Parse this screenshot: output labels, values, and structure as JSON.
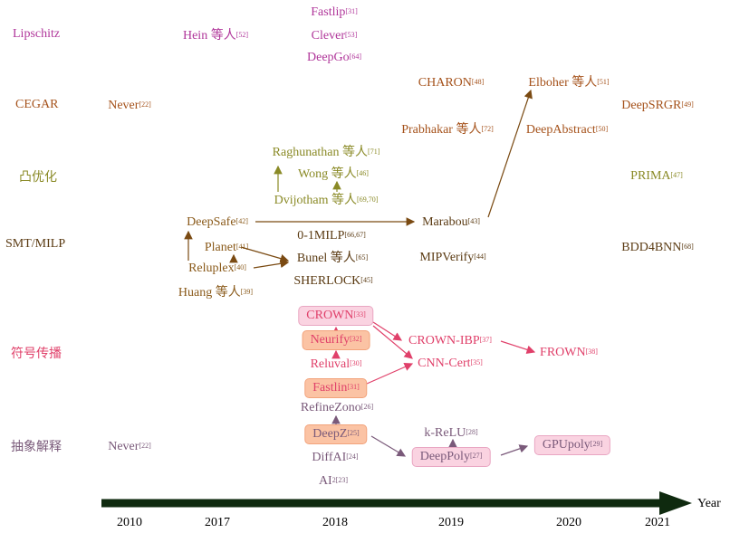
{
  "categories": [
    {
      "label": "Lipschitz",
      "color": "#b0369a"
    },
    {
      "label": "CEGAR",
      "color": "#a5521b"
    },
    {
      "label": "凸优化",
      "color": "#8a8a26"
    },
    {
      "label": "SMT/MILP",
      "color": "#5a3a12"
    },
    {
      "label": "符号传播",
      "color": "#e0406a"
    },
    {
      "label": "抽象解释",
      "color": "#7a5a7a"
    }
  ],
  "methods": [
    {
      "label": "Hein 等人",
      "ref": "[52]",
      "color": "#b0369a"
    },
    {
      "label": "Fastlip",
      "ref": "[31]",
      "color": "#b0369a"
    },
    {
      "label": "Clever",
      "ref": "[53]",
      "color": "#b0369a"
    },
    {
      "label": "DeepGo",
      "ref": "[64]",
      "color": "#b0369a"
    },
    {
      "label": "Never",
      "ref": "[22]",
      "color": "#a5521b"
    },
    {
      "label": "CHARON",
      "ref": "[48]",
      "color": "#a5521b"
    },
    {
      "label": "Prabhakar 等人",
      "ref": "[72]",
      "color": "#a5521b"
    },
    {
      "label": "Elboher 等人",
      "ref": "[51]",
      "color": "#a5521b"
    },
    {
      "label": "DeepAbstract",
      "ref": "[50]",
      "color": "#a5521b"
    },
    {
      "label": "DeepSRGR",
      "ref": "[49]",
      "color": "#a5521b"
    },
    {
      "label": "Raghunathan 等人",
      "ref": "[71]",
      "color": "#8a8a26"
    },
    {
      "label": "Wong 等人",
      "ref": "[46]",
      "color": "#8a8a26"
    },
    {
      "label": "Dvijotham 等人",
      "ref": "[69,70]",
      "color": "#8a8a26"
    },
    {
      "label": "PRIMA",
      "ref": "[47]",
      "color": "#8a8a26"
    },
    {
      "label": "DeepSafe",
      "ref": "[42]",
      "color": "#8a5a1a"
    },
    {
      "label": "Planet",
      "ref": "[41]",
      "color": "#8a5a1a"
    },
    {
      "label": "Reluplex",
      "ref": "[40]",
      "color": "#8a5a1a"
    },
    {
      "label": "Huang 等人",
      "ref": "[39]",
      "color": "#8a5a1a"
    },
    {
      "label": "0-1MILP",
      "ref": "[66,67]",
      "color": "#5a3a12"
    },
    {
      "label": "Bunel 等人",
      "ref": "[65]",
      "color": "#5a3a12"
    },
    {
      "label": "SHERLOCK",
      "ref": "[45]",
      "color": "#5a3a12"
    },
    {
      "label": "Marabou",
      "ref": "[43]",
      "color": "#5a3a12"
    },
    {
      "label": "MIPVerify",
      "ref": "[44]",
      "color": "#5a3a12"
    },
    {
      "label": "BDD4BNN",
      "ref": "[68]",
      "color": "#5a3a12"
    },
    {
      "label": "CROWN",
      "ref": "[33]",
      "color": "#e0406a"
    },
    {
      "label": "Neurify",
      "ref": "[32]",
      "color": "#e0406a"
    },
    {
      "label": "Reluval",
      "ref": "[30]",
      "color": "#e0406a"
    },
    {
      "label": "Fastlin",
      "ref": "[31]",
      "color": "#e0406a"
    },
    {
      "label": "CROWN-IBP",
      "ref": "[37]",
      "color": "#e0406a"
    },
    {
      "label": "CNN-Cert",
      "ref": "[35]",
      "color": "#e0406a"
    },
    {
      "label": "FROWN",
      "ref": "[38]",
      "color": "#e0406a"
    },
    {
      "label": "RefineZono",
      "ref": "[26]",
      "color": "#7a5a7a"
    },
    {
      "label": "DeepZ",
      "ref": "[25]",
      "color": "#7a5a7a"
    },
    {
      "label": "DiffAI",
      "ref": "[24]",
      "color": "#7a5a7a"
    },
    {
      "label": "AI",
      "ref": "2[23]",
      "color": "#7a5a7a"
    },
    {
      "label": "Never",
      "ref": "[22]",
      "color": "#7a5a7a"
    },
    {
      "label": "k-ReLU",
      "ref": "[28]",
      "color": "#7a5a7a"
    },
    {
      "label": "DeepPoly",
      "ref": "[27]",
      "color": "#7a5a7a"
    },
    {
      "label": "GPUpoly",
      "ref": "[29]",
      "color": "#7a5a7a"
    }
  ],
  "years": [
    "2010",
    "2017",
    "2018",
    "2019",
    "2020",
    "2021"
  ],
  "axis_label": "Year",
  "axis_color": "#0f2a0f"
}
